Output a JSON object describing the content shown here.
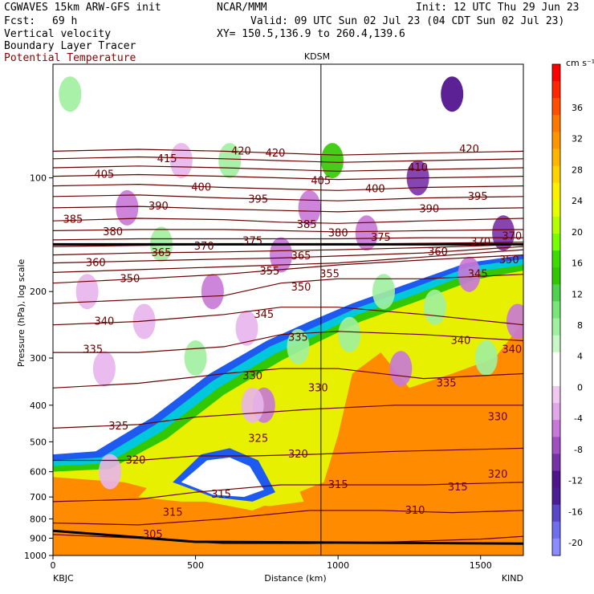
{
  "header": {
    "model": "CGWAVES 15km ARW-GFS init",
    "org": "NCAR/MMM",
    "init": "Init: 12 UTC Thu 29 Jun 23",
    "fcst_label": "Fcst:",
    "fcst_value": "69 h",
    "valid": "Valid: 09 UTC Sun 02 Jul 23 (04 CDT Sun 02 Jul 23)",
    "field1": "Vertical velocity",
    "xy": "XY= 150.5,136.9 to 260.4,139.6",
    "field2": "Boundary Layer Tracer",
    "field3": "Potential Temperature"
  },
  "colors": {
    "theta": "#6b0000",
    "field3_label": "#8b0000",
    "up_strong": "#4a0a8a",
    "up_light": "#e8b4ec"
  },
  "chart_data": {
    "type": "heatmap",
    "title": "KDSM",
    "xlabel": "Distance (km)",
    "ylabel": "Pressure (hPa), log scale",
    "y_scale": "log",
    "xlim": [
      0,
      1650
    ],
    "ylim": [
      1000,
      50
    ],
    "x_ticks": [
      0,
      500,
      1000,
      1500
    ],
    "y_ticks": [
      100,
      200,
      300,
      400,
      500,
      600,
      700,
      800,
      900,
      1000
    ],
    "x_end_labels": {
      "left": "KBJC",
      "right": "KIND"
    },
    "marker_line_x_km": 940,
    "colorbar": {
      "unit_label": "cm s⁻¹",
      "tick_labels": [
        "36",
        "32",
        "28",
        "24",
        "20",
        "16",
        "12",
        "8",
        "4",
        "0",
        "-4",
        "-8",
        "-12",
        "-16",
        "-20"
      ],
      "colors": [
        "#ff0000",
        "#ff2800",
        "#ff5000",
        "#ff7800",
        "#ff9600",
        "#ffb400",
        "#ffd200",
        "#fff000",
        "#e6ff00",
        "#b4ff00",
        "#78ff00",
        "#3cdc00",
        "#32c800",
        "#50d250",
        "#78e678",
        "#a0f0a0",
        "#c8f8c8",
        "#ffffff",
        "#ffffff",
        "#f0c8f0",
        "#e0a8e8",
        "#c878d8",
        "#a050c0",
        "#7832a8",
        "#50148c",
        "#4b1e96",
        "#5a46c8",
        "#6e6eee",
        "#8c8cff"
      ]
    },
    "theta_contours": [
      {
        "theta": 305,
        "points": [
          [
            0,
            880
          ],
          [
            300,
            900
          ],
          [
            600,
            930
          ],
          [
            900,
            930
          ],
          [
            1200,
            920
          ],
          [
            1500,
            905
          ],
          [
            1650,
            890
          ]
        ]
      },
      {
        "theta": 310,
        "points": [
          [
            0,
            820
          ],
          [
            300,
            830
          ],
          [
            600,
            800
          ],
          [
            900,
            760
          ],
          [
            1150,
            760
          ],
          [
            1400,
            770
          ],
          [
            1650,
            760
          ]
        ]
      },
      {
        "theta": 315,
        "points": [
          [
            0,
            720
          ],
          [
            300,
            710
          ],
          [
            500,
            680
          ],
          [
            800,
            650
          ],
          [
            1000,
            650
          ],
          [
            1300,
            650
          ],
          [
            1650,
            640
          ]
        ]
      },
      {
        "theta": 320,
        "points": [
          [
            0,
            560
          ],
          [
            300,
            560
          ],
          [
            500,
            545
          ],
          [
            700,
            545
          ],
          [
            900,
            540
          ],
          [
            1200,
            530
          ],
          [
            1650,
            520
          ]
        ]
      },
      {
        "theta": 325,
        "points": [
          [
            0,
            460
          ],
          [
            300,
            450
          ],
          [
            500,
            430
          ],
          [
            700,
            420
          ],
          [
            900,
            410
          ],
          [
            1200,
            400
          ],
          [
            1650,
            400
          ]
        ]
      },
      {
        "theta": 330,
        "points": [
          [
            0,
            360
          ],
          [
            300,
            350
          ],
          [
            600,
            330
          ],
          [
            800,
            320
          ],
          [
            1000,
            320
          ],
          [
            1300,
            340
          ],
          [
            1650,
            330
          ]
        ]
      },
      {
        "theta": 335,
        "points": [
          [
            0,
            290
          ],
          [
            300,
            290
          ],
          [
            600,
            280
          ],
          [
            800,
            260
          ],
          [
            1000,
            255
          ],
          [
            1300,
            260
          ],
          [
            1650,
            270
          ]
        ]
      },
      {
        "theta": 340,
        "points": [
          [
            0,
            245
          ],
          [
            300,
            240
          ],
          [
            600,
            230
          ],
          [
            800,
            220
          ],
          [
            1000,
            220
          ],
          [
            1300,
            230
          ],
          [
            1650,
            245
          ]
        ]
      },
      {
        "theta": 345,
        "points": [
          [
            0,
            215
          ],
          [
            300,
            210
          ],
          [
            600,
            205
          ],
          [
            800,
            190
          ],
          [
            1000,
            185
          ],
          [
            1300,
            185
          ],
          [
            1650,
            180
          ]
        ]
      },
      {
        "theta": 350,
        "points": [
          [
            0,
            190
          ],
          [
            300,
            185
          ],
          [
            600,
            180
          ],
          [
            800,
            175
          ],
          [
            1000,
            170
          ],
          [
            1300,
            165
          ],
          [
            1650,
            160
          ]
        ]
      },
      {
        "theta": 355,
        "points": [
          [
            0,
            178
          ],
          [
            300,
            175
          ],
          [
            600,
            172
          ],
          [
            800,
            170
          ],
          [
            1000,
            168
          ],
          [
            1300,
            162
          ],
          [
            1650,
            155
          ]
        ]
      },
      {
        "theta": 360,
        "points": [
          [
            0,
            168
          ],
          [
            300,
            166
          ],
          [
            600,
            164
          ],
          [
            800,
            163
          ],
          [
            1000,
            161
          ],
          [
            1300,
            158
          ],
          [
            1650,
            152
          ]
        ]
      },
      {
        "theta": 365,
        "points": [
          [
            0,
            160
          ],
          [
            300,
            158
          ],
          [
            600,
            157
          ],
          [
            800,
            156
          ],
          [
            1000,
            155
          ],
          [
            1300,
            153
          ],
          [
            1650,
            150
          ]
        ]
      },
      {
        "theta": 370,
        "points": [
          [
            0,
            152
          ],
          [
            300,
            151
          ],
          [
            600,
            150
          ],
          [
            800,
            150
          ],
          [
            1000,
            150
          ],
          [
            1300,
            149
          ],
          [
            1650,
            148
          ]
        ]
      },
      {
        "theta": 375,
        "points": [
          [
            0,
            146
          ],
          [
            300,
            145
          ],
          [
            600,
            145
          ],
          [
            800,
            145
          ],
          [
            1000,
            145
          ],
          [
            1300,
            144
          ],
          [
            1650,
            144
          ]
        ]
      },
      {
        "theta": 380,
        "points": [
          [
            0,
            138
          ],
          [
            300,
            137
          ],
          [
            600,
            137
          ],
          [
            800,
            138
          ],
          [
            1000,
            139
          ],
          [
            1300,
            138
          ],
          [
            1650,
            137
          ]
        ]
      },
      {
        "theta": 385,
        "points": [
          [
            0,
            130
          ],
          [
            300,
            128
          ],
          [
            600,
            129
          ],
          [
            800,
            131
          ],
          [
            1000,
            132
          ],
          [
            1300,
            130
          ],
          [
            1650,
            128
          ]
        ]
      },
      {
        "theta": 390,
        "points": [
          [
            0,
            120
          ],
          [
            300,
            119
          ],
          [
            600,
            121
          ],
          [
            800,
            122
          ],
          [
            1000,
            123
          ],
          [
            1300,
            121
          ],
          [
            1650,
            120
          ]
        ]
      },
      {
        "theta": 395,
        "points": [
          [
            0,
            112
          ],
          [
            300,
            111
          ],
          [
            600,
            113
          ],
          [
            800,
            114
          ],
          [
            1000,
            115
          ],
          [
            1300,
            113
          ],
          [
            1650,
            112
          ]
        ]
      },
      {
        "theta": 400,
        "points": [
          [
            0,
            105
          ],
          [
            300,
            104
          ],
          [
            600,
            106
          ],
          [
            800,
            107
          ],
          [
            1000,
            108
          ],
          [
            1300,
            106
          ],
          [
            1650,
            105
          ]
        ]
      },
      {
        "theta": 405,
        "points": [
          [
            0,
            99
          ],
          [
            300,
            98
          ],
          [
            600,
            99
          ],
          [
            800,
            100
          ],
          [
            1000,
            101
          ],
          [
            1300,
            100
          ],
          [
            1650,
            99
          ]
        ]
      },
      {
        "theta": 410,
        "points": [
          [
            0,
            94
          ],
          [
            300,
            93
          ],
          [
            600,
            94
          ],
          [
            800,
            95
          ],
          [
            1000,
            96
          ],
          [
            1300,
            95
          ],
          [
            1650,
            94
          ]
        ]
      },
      {
        "theta": 415,
        "points": [
          [
            0,
            89
          ],
          [
            300,
            88
          ],
          [
            600,
            89
          ],
          [
            800,
            90
          ],
          [
            1000,
            91
          ],
          [
            1300,
            90
          ],
          [
            1650,
            89
          ]
        ]
      },
      {
        "theta": 420,
        "points": [
          [
            0,
            85
          ],
          [
            300,
            84
          ],
          [
            600,
            85
          ],
          [
            800,
            86
          ],
          [
            1000,
            87
          ],
          [
            1300,
            86
          ],
          [
            1650,
            85
          ]
        ]
      }
    ],
    "theta_labels": [
      {
        "text": "305",
        "x": 350,
        "p": 880
      },
      {
        "text": "310",
        "x": 1270,
        "p": 760
      },
      {
        "text": "315",
        "x": 590,
        "p": 690
      },
      {
        "text": "315",
        "x": 1000,
        "p": 650
      },
      {
        "text": "315",
        "x": 1420,
        "p": 660
      },
      {
        "text": "315",
        "x": 420,
        "p": 770
      },
      {
        "text": "320",
        "x": 290,
        "p": 560
      },
      {
        "text": "320",
        "x": 860,
        "p": 540
      },
      {
        "text": "320",
        "x": 1560,
        "p": 610
      },
      {
        "text": "325",
        "x": 230,
        "p": 455
      },
      {
        "text": "325",
        "x": 720,
        "p": 490
      },
      {
        "text": "330",
        "x": 700,
        "p": 335
      },
      {
        "text": "330",
        "x": 930,
        "p": 360
      },
      {
        "text": "330",
        "x": 1560,
        "p": 430
      },
      {
        "text": "335",
        "x": 140,
        "p": 285
      },
      {
        "text": "335",
        "x": 860,
        "p": 265
      },
      {
        "text": "335",
        "x": 1380,
        "p": 350
      },
      {
        "text": "340",
        "x": 180,
        "p": 240
      },
      {
        "text": "340",
        "x": 1430,
        "p": 270
      },
      {
        "text": "340",
        "x": 1610,
        "p": 285
      },
      {
        "text": "345",
        "x": 740,
        "p": 230
      },
      {
        "text": "345",
        "x": 1490,
        "p": 180
      },
      {
        "text": "350",
        "x": 270,
        "p": 185
      },
      {
        "text": "350",
        "x": 870,
        "p": 195
      },
      {
        "text": "350",
        "x": 1600,
        "p": 165
      },
      {
        "text": "355",
        "x": 760,
        "p": 177
      },
      {
        "text": "355",
        "x": 970,
        "p": 180
      },
      {
        "text": "360",
        "x": 150,
        "p": 168
      },
      {
        "text": "360",
        "x": 1350,
        "p": 157
      },
      {
        "text": "365",
        "x": 380,
        "p": 158
      },
      {
        "text": "365",
        "x": 870,
        "p": 161
      },
      {
        "text": "370",
        "x": 530,
        "p": 152
      },
      {
        "text": "370",
        "x": 1500,
        "p": 148
      },
      {
        "text": "370",
        "x": 1610,
        "p": 143
      },
      {
        "text": "375",
        "x": 700,
        "p": 147
      },
      {
        "text": "375",
        "x": 1150,
        "p": 144
      },
      {
        "text": "380",
        "x": 210,
        "p": 139
      },
      {
        "text": "380",
        "x": 1000,
        "p": 140
      },
      {
        "text": "385",
        "x": 70,
        "p": 129
      },
      {
        "text": "385",
        "x": 890,
        "p": 133
      },
      {
        "text": "390",
        "x": 370,
        "p": 119
      },
      {
        "text": "390",
        "x": 1320,
        "p": 121
      },
      {
        "text": "395",
        "x": 720,
        "p": 114
      },
      {
        "text": "395",
        "x": 1490,
        "p": 112
      },
      {
        "text": "400",
        "x": 520,
        "p": 106
      },
      {
        "text": "400",
        "x": 1130,
        "p": 107
      },
      {
        "text": "405",
        "x": 180,
        "p": 98
      },
      {
        "text": "405",
        "x": 940,
        "p": 102
      },
      {
        "text": "410",
        "x": 1280,
        "p": 94
      },
      {
        "text": "415",
        "x": 400,
        "p": 89
      },
      {
        "text": "420",
        "x": 660,
        "p": 85
      },
      {
        "text": "420",
        "x": 780,
        "p": 86
      },
      {
        "text": "420",
        "x": 1460,
        "p": 84
      }
    ]
  }
}
